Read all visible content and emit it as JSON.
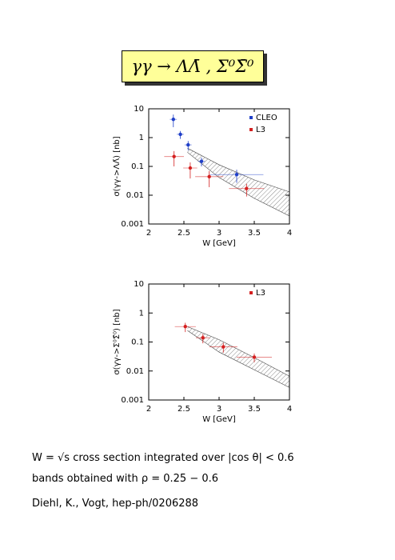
{
  "slide_title": "γγ → ΛΛ̄ , Σ⁰Σ̄⁰",
  "chart_data": [
    {
      "type": "scatter",
      "xlabel": "W [GeV]",
      "ylabel": "σ(γγ->ΛΛ̄) [nb]",
      "xlim": [
        2,
        4
      ],
      "xticks": [
        2,
        2.5,
        3,
        3.5,
        4
      ],
      "ylim": [
        0.001,
        10
      ],
      "yticks": [
        0.001,
        0.01,
        0.1,
        1,
        10
      ],
      "yscale": "log",
      "legend": "upper right",
      "series": [
        {
          "name": "CLEO",
          "color": "#1f3fc8",
          "x": [
            2.35,
            2.45,
            2.56,
            2.75,
            3.25
          ],
          "values": [
            4.3,
            1.3,
            0.56,
            0.15,
            0.052
          ],
          "xerr": [
            0.05,
            0.05,
            0.05,
            0.05,
            0.38
          ],
          "yerr": [
            2.0,
            0.4,
            0.2,
            0.05,
            0.025
          ]
        },
        {
          "name": "L3",
          "color": "#d42020",
          "x": [
            2.36,
            2.59,
            2.86,
            3.39
          ],
          "values": [
            0.22,
            0.088,
            0.044,
            0.017
          ],
          "xerr": [
            0.14,
            0.1,
            0.2,
            0.25
          ],
          "yerr": [
            0.12,
            0.05,
            0.025,
            0.008
          ]
        }
      ],
      "band": {
        "x": [
          2.55,
          3,
          3.5,
          4
        ],
        "upper": [
          0.43,
          0.114,
          0.034,
          0.013
        ],
        "lower": [
          0.31,
          0.041,
          0.0078,
          0.0019
        ]
      }
    },
    {
      "type": "scatter",
      "xlabel": "W [GeV]",
      "ylabel": "σ(γγ->Σ⁰Σ̄⁰) [nb]",
      "xlim": [
        2,
        4
      ],
      "xticks": [
        2,
        2.5,
        3,
        3.5,
        4
      ],
      "ylim": [
        0.001,
        10
      ],
      "yticks": [
        0.001,
        0.01,
        0.1,
        1,
        10
      ],
      "yscale": "log",
      "legend": "upper right",
      "series": [
        {
          "name": "L3",
          "color": "#d42020",
          "x": [
            2.52,
            2.77,
            3.06,
            3.5
          ],
          "values": [
            0.34,
            0.14,
            0.068,
            0.03
          ],
          "xerr": [
            0.15,
            0.1,
            0.2,
            0.25
          ],
          "yerr": [
            0.12,
            0.05,
            0.025,
            0.01
          ]
        }
      ],
      "band": {
        "x": [
          2.55,
          3,
          3.5,
          4
        ],
        "upper": [
          0.34,
          0.12,
          0.029,
          0.0066
        ],
        "lower": [
          0.25,
          0.045,
          0.011,
          0.0027
        ]
      }
    }
  ],
  "notes": [
    "W = √s cross section integrated over |cos θ| < 0.6",
    "bands obtained with ρ = 0.25 − 0.6",
    "Diehl, K., Vogt, hep-ph/0206288"
  ]
}
